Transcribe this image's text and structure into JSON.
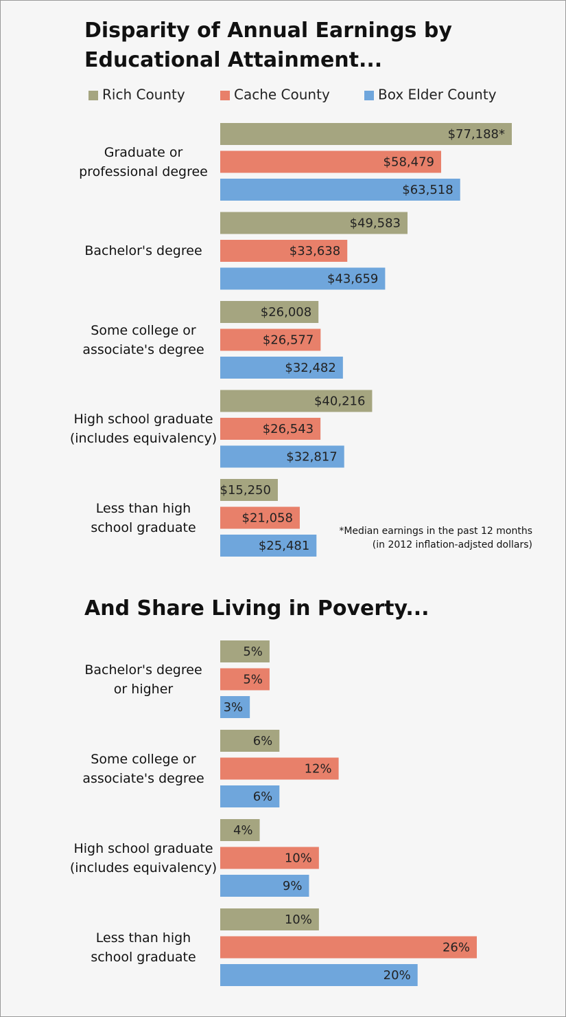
{
  "chart_data": [
    {
      "type": "bar",
      "orientation": "horizontal",
      "title": "Disparity of Annual Earnings by\nEducational Attainment...",
      "categories": [
        "Graduate or\nprofessional degree",
        "Bachelor's degree",
        "Some college or\nassociate's degree",
        "High school graduate\n(includes equivalency)",
        "Less than high\nschool graduate"
      ],
      "series": [
        {
          "name": "Rich County",
          "color": "#a5a580",
          "values": [
            77188,
            49583,
            26008,
            40216,
            15250
          ],
          "value_labels": [
            "$77,188*",
            "$49,583",
            "$26,008",
            "$40,216",
            "$15,250"
          ]
        },
        {
          "name": "Cache County",
          "color": "#e8806a",
          "values": [
            58479,
            33638,
            26577,
            26543,
            21058
          ],
          "value_labels": [
            "$58,479",
            "$33,638",
            "$26,577",
            "$26,543",
            "$21,058"
          ]
        },
        {
          "name": "Box Elder County",
          "color": "#6fa6dc",
          "values": [
            63518,
            43659,
            32482,
            32817,
            25481
          ],
          "value_labels": [
            "$63,518",
            "$43,659",
            "$32,482",
            "$32,817",
            "$25,481"
          ]
        }
      ],
      "annotation": "*Median earnings in the past 12 months\n(in 2012 inflation-adjsted dollars)",
      "legend": "top"
    },
    {
      "type": "bar",
      "orientation": "horizontal",
      "title": "And Share Living in Poverty...",
      "categories": [
        "Bachelor's degree\nor higher",
        "Some college or\nassociate's degree",
        "High school graduate\n(includes equivalency)",
        "Less than high\nschool graduate"
      ],
      "series": [
        {
          "color": "#a5a580",
          "values": [
            5,
            6,
            4,
            10
          ],
          "value_labels": [
            "5%",
            "6%",
            "4%",
            "10%"
          ]
        },
        {
          "color": "#e8806a",
          "values": [
            5,
            12,
            10,
            26
          ],
          "value_labels": [
            "5%",
            "12%",
            "10%",
            "26%"
          ]
        },
        {
          "color": "#6fa6dc",
          "values": [
            3,
            6,
            9,
            20
          ],
          "value_labels": [
            "3%",
            "6%",
            "9%",
            "20%"
          ]
        }
      ]
    }
  ]
}
